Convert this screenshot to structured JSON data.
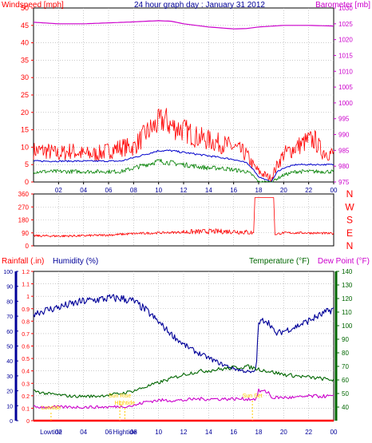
{
  "colors": {
    "wind": "#ff0000",
    "gust_avg": "#0000cc",
    "wind_min": "#008000",
    "barometer": "#cc00cc",
    "humidity": "#000099",
    "temperature": "#006600",
    "dewpoint": "#cc00cc",
    "rainfall": "#ff0000",
    "tide": "#ffcc00",
    "title": "#000099"
  },
  "chart_data": [
    {
      "type": "line",
      "title": "24 hour graph day : January 31 2012",
      "ylabel_left": "Windspeed [mph]",
      "ylabel_right": "Barometer [mb]",
      "x_ticks": [
        "02",
        "04",
        "06",
        "08",
        "10",
        "12",
        "14",
        "16",
        "18",
        "20",
        "22",
        "00"
      ],
      "x_range": [
        0,
        24
      ],
      "ylim_left": [
        0,
        50
      ],
      "y_ticks_left": [
        "0",
        "5",
        "10",
        "15",
        "20",
        "25",
        "30",
        "35",
        "40",
        "45",
        "50"
      ],
      "ylim_right": [
        975,
        1030
      ],
      "y_ticks_right": [
        "975",
        "980",
        "985",
        "990",
        "995",
        "1000",
        "1005",
        "1010",
        "1015",
        "1020",
        "1025",
        "1030"
      ],
      "grid": true,
      "series": [
        {
          "name": "Windspeed",
          "axis": "left",
          "x": [
            0,
            1,
            2,
            3,
            4,
            5,
            6,
            7,
            8,
            9,
            10,
            10.5,
            11,
            12,
            13,
            14,
            15,
            16,
            17,
            17.5,
            18,
            19,
            19.5,
            20,
            21,
            22,
            22.5,
            23,
            24
          ],
          "y": [
            9,
            9,
            8,
            9,
            8,
            8,
            9,
            10,
            10,
            14,
            17,
            18,
            16,
            15,
            13,
            12,
            11,
            10,
            8,
            5,
            3,
            1,
            5,
            8,
            10,
            12,
            12,
            9,
            8
          ]
        },
        {
          "name": "Average",
          "axis": "left",
          "x": [
            0,
            1,
            2,
            3,
            4,
            5,
            6,
            7,
            8,
            9,
            10,
            11,
            12,
            13,
            14,
            15,
            16,
            17,
            17.5,
            18,
            19,
            19.5,
            20,
            21,
            22,
            23,
            24
          ],
          "y": [
            6,
            6,
            6,
            6,
            6,
            6,
            6,
            6,
            7,
            8,
            9,
            9,
            8.5,
            8,
            7.5,
            7,
            6.5,
            5.5,
            4,
            1.5,
            0,
            3,
            4,
            5,
            5,
            5,
            5
          ]
        },
        {
          "name": "Minimum",
          "axis": "left",
          "x": [
            0,
            1,
            2,
            3,
            4,
            5,
            6,
            7,
            8,
            9,
            10,
            11,
            12,
            13,
            14,
            15,
            16,
            17,
            17.5,
            18,
            19,
            19.5,
            20,
            21,
            22,
            23,
            24
          ],
          "y": [
            3,
            3,
            3,
            3,
            3,
            3,
            3,
            3,
            4,
            5,
            6,
            5.5,
            5,
            4.5,
            4,
            4,
            3.5,
            3,
            2,
            0,
            0,
            1,
            2,
            3,
            3,
            3,
            3
          ]
        },
        {
          "name": "Barometer",
          "axis": "right",
          "x": [
            0,
            2,
            4,
            6,
            8,
            10,
            11,
            12,
            14,
            16,
            17,
            18,
            20,
            22,
            24
          ],
          "y": [
            1025.5,
            1025,
            1025,
            1025.3,
            1025.6,
            1026,
            1025.8,
            1025,
            1024,
            1023.4,
            1023.5,
            1024,
            1024.5,
            1024.5,
            1024.3
          ]
        }
      ]
    },
    {
      "type": "line",
      "ylabel_right": "N W S E N",
      "compass_letters": [
        "N",
        "W",
        "S",
        "E",
        "N"
      ],
      "x_ticks": [
        "02",
        "04",
        "06",
        "08",
        "10",
        "12",
        "14",
        "16",
        "18",
        "20",
        "22",
        "00"
      ],
      "x_range": [
        0,
        24
      ],
      "ylim": [
        0,
        360
      ],
      "y_ticks": [
        "0",
        "90",
        "180",
        "270",
        "360"
      ],
      "series": [
        {
          "name": "Wind direction",
          "x": [
            0,
            2,
            4,
            6,
            8,
            10,
            12,
            14,
            16,
            17,
            17.6,
            17.7,
            19.2,
            19.3,
            20,
            22,
            24
          ],
          "y": [
            70,
            68,
            70,
            75,
            85,
            90,
            95,
            100,
            100,
            95,
            90,
            335,
            335,
            80,
            90,
            90,
            85
          ]
        }
      ]
    },
    {
      "type": "line",
      "labels_top": [
        "Rainfall (.in)",
        "Humidity (%)",
        "Temperature (°F)",
        "Dew Point (°F)"
      ],
      "x_ticks": [
        "Lowtide",
        "02",
        "04",
        "06",
        "08",
        "Hightide",
        "10",
        "12",
        "14",
        "16",
        "18",
        "20",
        "22",
        "00"
      ],
      "x_range": [
        0,
        24
      ],
      "ylim_rain": [
        0,
        1.2
      ],
      "y_ticks_rain": [
        "0",
        "0.1",
        "0.2",
        "0.3",
        "0.4",
        "0.5",
        "0.6",
        "0.7",
        "0.8",
        "0.9",
        "1",
        "1.1",
        "1.2"
      ],
      "ylim_humidity": [
        0,
        100
      ],
      "y_ticks_humidity": [
        "0",
        "10",
        "20",
        "30",
        "40",
        "50",
        "60",
        "70",
        "80",
        "90",
        "100"
      ],
      "ylim_temp": [
        30,
        140
      ],
      "y_ticks_temp": [
        "40",
        "50",
        "60",
        "70",
        "80",
        "90",
        "100",
        "110",
        "120",
        "130",
        "140"
      ],
      "annotations": [
        "Lowtide",
        "Sun Rise",
        "Hightide",
        "Sun Set"
      ],
      "series": [
        {
          "name": "Humidity",
          "axis": "humidity",
          "x": [
            0,
            1,
            2,
            3,
            4,
            5,
            6,
            7,
            8,
            9,
            10,
            11,
            12,
            13,
            14,
            15,
            16,
            17,
            17.5,
            17.8,
            18,
            18.5,
            19,
            19.3,
            20,
            21,
            22,
            23,
            24
          ],
          "y": [
            72,
            74,
            76,
            78,
            80,
            81,
            82,
            82,
            80,
            74,
            66,
            58,
            51,
            46,
            42,
            38,
            35,
            33,
            32,
            35,
            65,
            68,
            64,
            58,
            60,
            63,
            67,
            71,
            75
          ]
        },
        {
          "name": "Temperature",
          "axis": "temp",
          "x": [
            0,
            1,
            2,
            3,
            4,
            5,
            6,
            7,
            8,
            9,
            10,
            11,
            12,
            13,
            14,
            15,
            16,
            17,
            18,
            19,
            20,
            21,
            22,
            23,
            24
          ],
          "y": [
            52,
            50,
            49,
            48,
            48,
            48,
            49,
            50,
            52,
            55,
            58,
            61,
            64,
            66,
            67,
            68,
            69,
            70,
            68,
            66,
            64,
            63,
            62,
            61,
            60
          ]
        },
        {
          "name": "Dew Point",
          "axis": "temp",
          "x": [
            0,
            2,
            4,
            6,
            8,
            9,
            10,
            11,
            12,
            13,
            14,
            15,
            16,
            17,
            17.8,
            18,
            18.8,
            19,
            20,
            21,
            22,
            23,
            24
          ],
          "y": [
            40,
            40,
            40,
            40,
            41,
            44,
            45,
            45,
            45,
            46,
            46,
            46,
            46,
            46,
            46,
            52,
            51,
            47,
            47,
            47,
            48,
            48,
            48
          ]
        },
        {
          "name": "Rainfall",
          "axis": "rain",
          "x": [
            0,
            24
          ],
          "y": [
            0,
            0
          ]
        }
      ]
    }
  ]
}
